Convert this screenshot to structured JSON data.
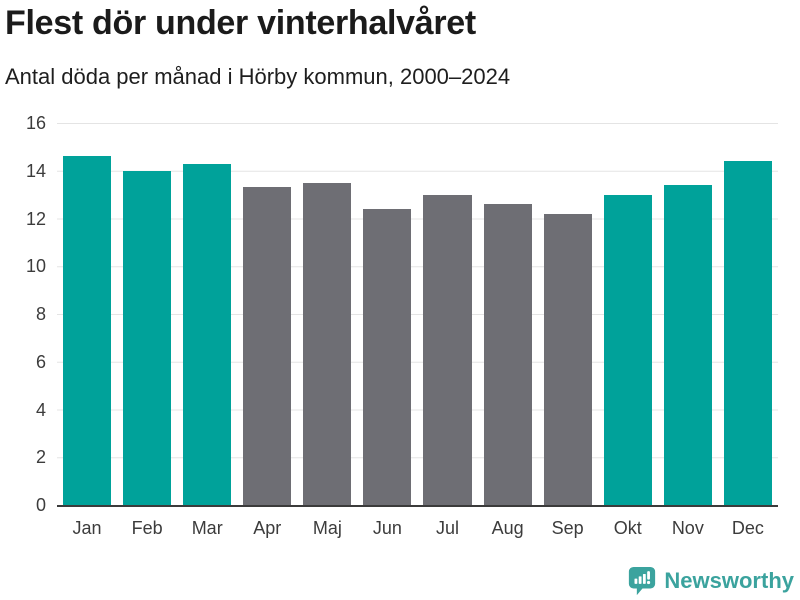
{
  "header": {
    "title": "Flest dör under vinterhalvåret",
    "subtitle": "Antal döda per månad i Hörby kommun, 2000–2024"
  },
  "chart_data": {
    "type": "bar",
    "title": "Flest dör under vinterhalvåret",
    "subtitle": "Antal döda per månad i Hörby kommun, 2000–2024",
    "categories": [
      "Jan",
      "Feb",
      "Mar",
      "Apr",
      "Maj",
      "Jun",
      "Jul",
      "Aug",
      "Sep",
      "Okt",
      "Nov",
      "Dec"
    ],
    "values": [
      14.6,
      14.0,
      14.3,
      13.3,
      13.5,
      12.4,
      13.0,
      12.6,
      12.2,
      13.0,
      13.4,
      14.4
    ],
    "season_keys": [
      "winter",
      "winter",
      "winter",
      "summer",
      "summer",
      "summer",
      "summer",
      "summer",
      "summer",
      "winter",
      "winter",
      "winter"
    ],
    "colors": {
      "winter": "#00a29a",
      "summer": "#6e6e74",
      "gridline": "#e4e4e4",
      "axis_line": "#3b3b3b",
      "tick_text": "#3c3c3c"
    },
    "xlabel": "",
    "ylabel": "",
    "ylim": [
      0,
      16
    ],
    "yticks": [
      0,
      2,
      4,
      6,
      8,
      10,
      12,
      14,
      16
    ],
    "grid": "horizontal",
    "legend": "none"
  },
  "footer": {
    "brand": "Newsworthy",
    "brand_color": "#3ba39e",
    "logo_icon": "bar-chart-speech-bubble-icon"
  }
}
